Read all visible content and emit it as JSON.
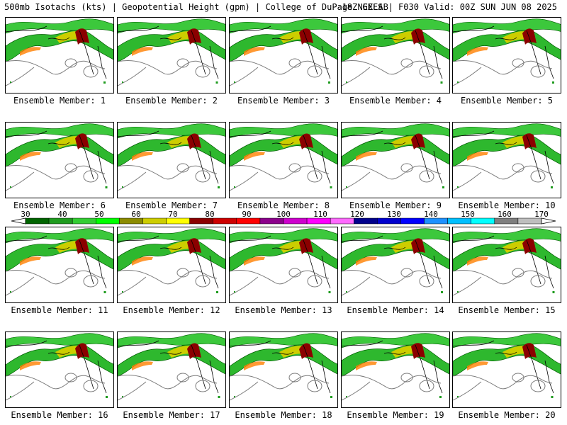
{
  "header": {
    "left": "500mb Isotachs (kts) | Geopotential Height (gpm) | College of DuPage NEXLAB",
    "right": "18Z GEFS | F030 Valid: 00Z SUN JUN 08 2025"
  },
  "member_label_prefix": "Ensemble Member:",
  "members": [
    "1",
    "2",
    "3",
    "4",
    "5",
    "6",
    "7",
    "8",
    "9",
    "10",
    "11",
    "12",
    "13",
    "14",
    "15",
    "16",
    "17",
    "18",
    "19",
    "20"
  ],
  "colorbar": {
    "labels": [
      "30",
      "40",
      "50",
      "60",
      "70",
      "80",
      "90",
      "100",
      "110",
      "120",
      "130",
      "140",
      "150",
      "160",
      "170"
    ],
    "colors": [
      "#006400",
      "#1e9b1e",
      "#32cd32",
      "#00ff00",
      "#8b8b00",
      "#cdcd00",
      "#ffff00",
      "#8b0000",
      "#cd0000",
      "#ff0000",
      "#8b008b",
      "#cd00cd",
      "#ff00ff",
      "#ff69ff",
      "#00008b",
      "#0000cd",
      "#0000ff",
      "#1e90ff",
      "#00bfff",
      "#00ffff",
      "#7f7f7f",
      "#bebebe"
    ]
  }
}
